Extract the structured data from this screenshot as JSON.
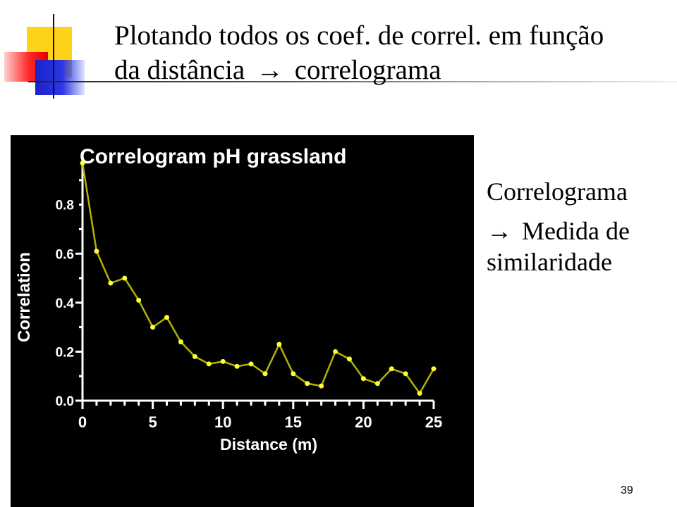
{
  "slide": {
    "title_line1": "Plotando todos os coef. de correl. em função",
    "title_line2_prefix": "da distância",
    "title_arrow": "→",
    "title_line2_suffix": "correlograma",
    "side_heading": "Correlograma",
    "side_arrow": "→",
    "side_text": "Medida de similaridade",
    "page_number": "39"
  },
  "colors": {
    "chart_background": "#000000",
    "series_line": "#b5b100",
    "series_points": "#ffff33",
    "axis_text": "#ffffff",
    "deco_yellow": "#ffd21a",
    "deco_red": "#ff2a2a",
    "deco_blue": "#1a22c8"
  },
  "chart_data": {
    "type": "line",
    "title": "Correlogram pH grassland",
    "xlabel": "Distance (m)",
    "ylabel": "Correlation",
    "xlim": [
      0,
      25
    ],
    "ylim": [
      0,
      0.96
    ],
    "x_ticks": [
      "0",
      "5",
      "10",
      "15",
      "20",
      "25"
    ],
    "y_ticks": [
      "0.0",
      "0.2",
      "0.4",
      "0.6",
      "0.8"
    ],
    "grid": false,
    "series": [
      {
        "x": [
          0,
          1,
          2,
          3,
          4,
          5,
          6,
          7,
          8,
          9,
          10,
          11,
          12,
          13,
          14,
          15,
          16,
          17,
          18,
          19,
          20,
          21,
          22,
          23,
          24,
          25
        ],
        "values": [
          0.97,
          0.61,
          0.48,
          0.5,
          0.41,
          0.3,
          0.34,
          0.24,
          0.18,
          0.15,
          0.16,
          0.14,
          0.15,
          0.11,
          0.23,
          0.11,
          0.07,
          0.06,
          0.2,
          0.17,
          0.09,
          0.07,
          0.13,
          0.11,
          0.03,
          0.13
        ]
      }
    ]
  }
}
